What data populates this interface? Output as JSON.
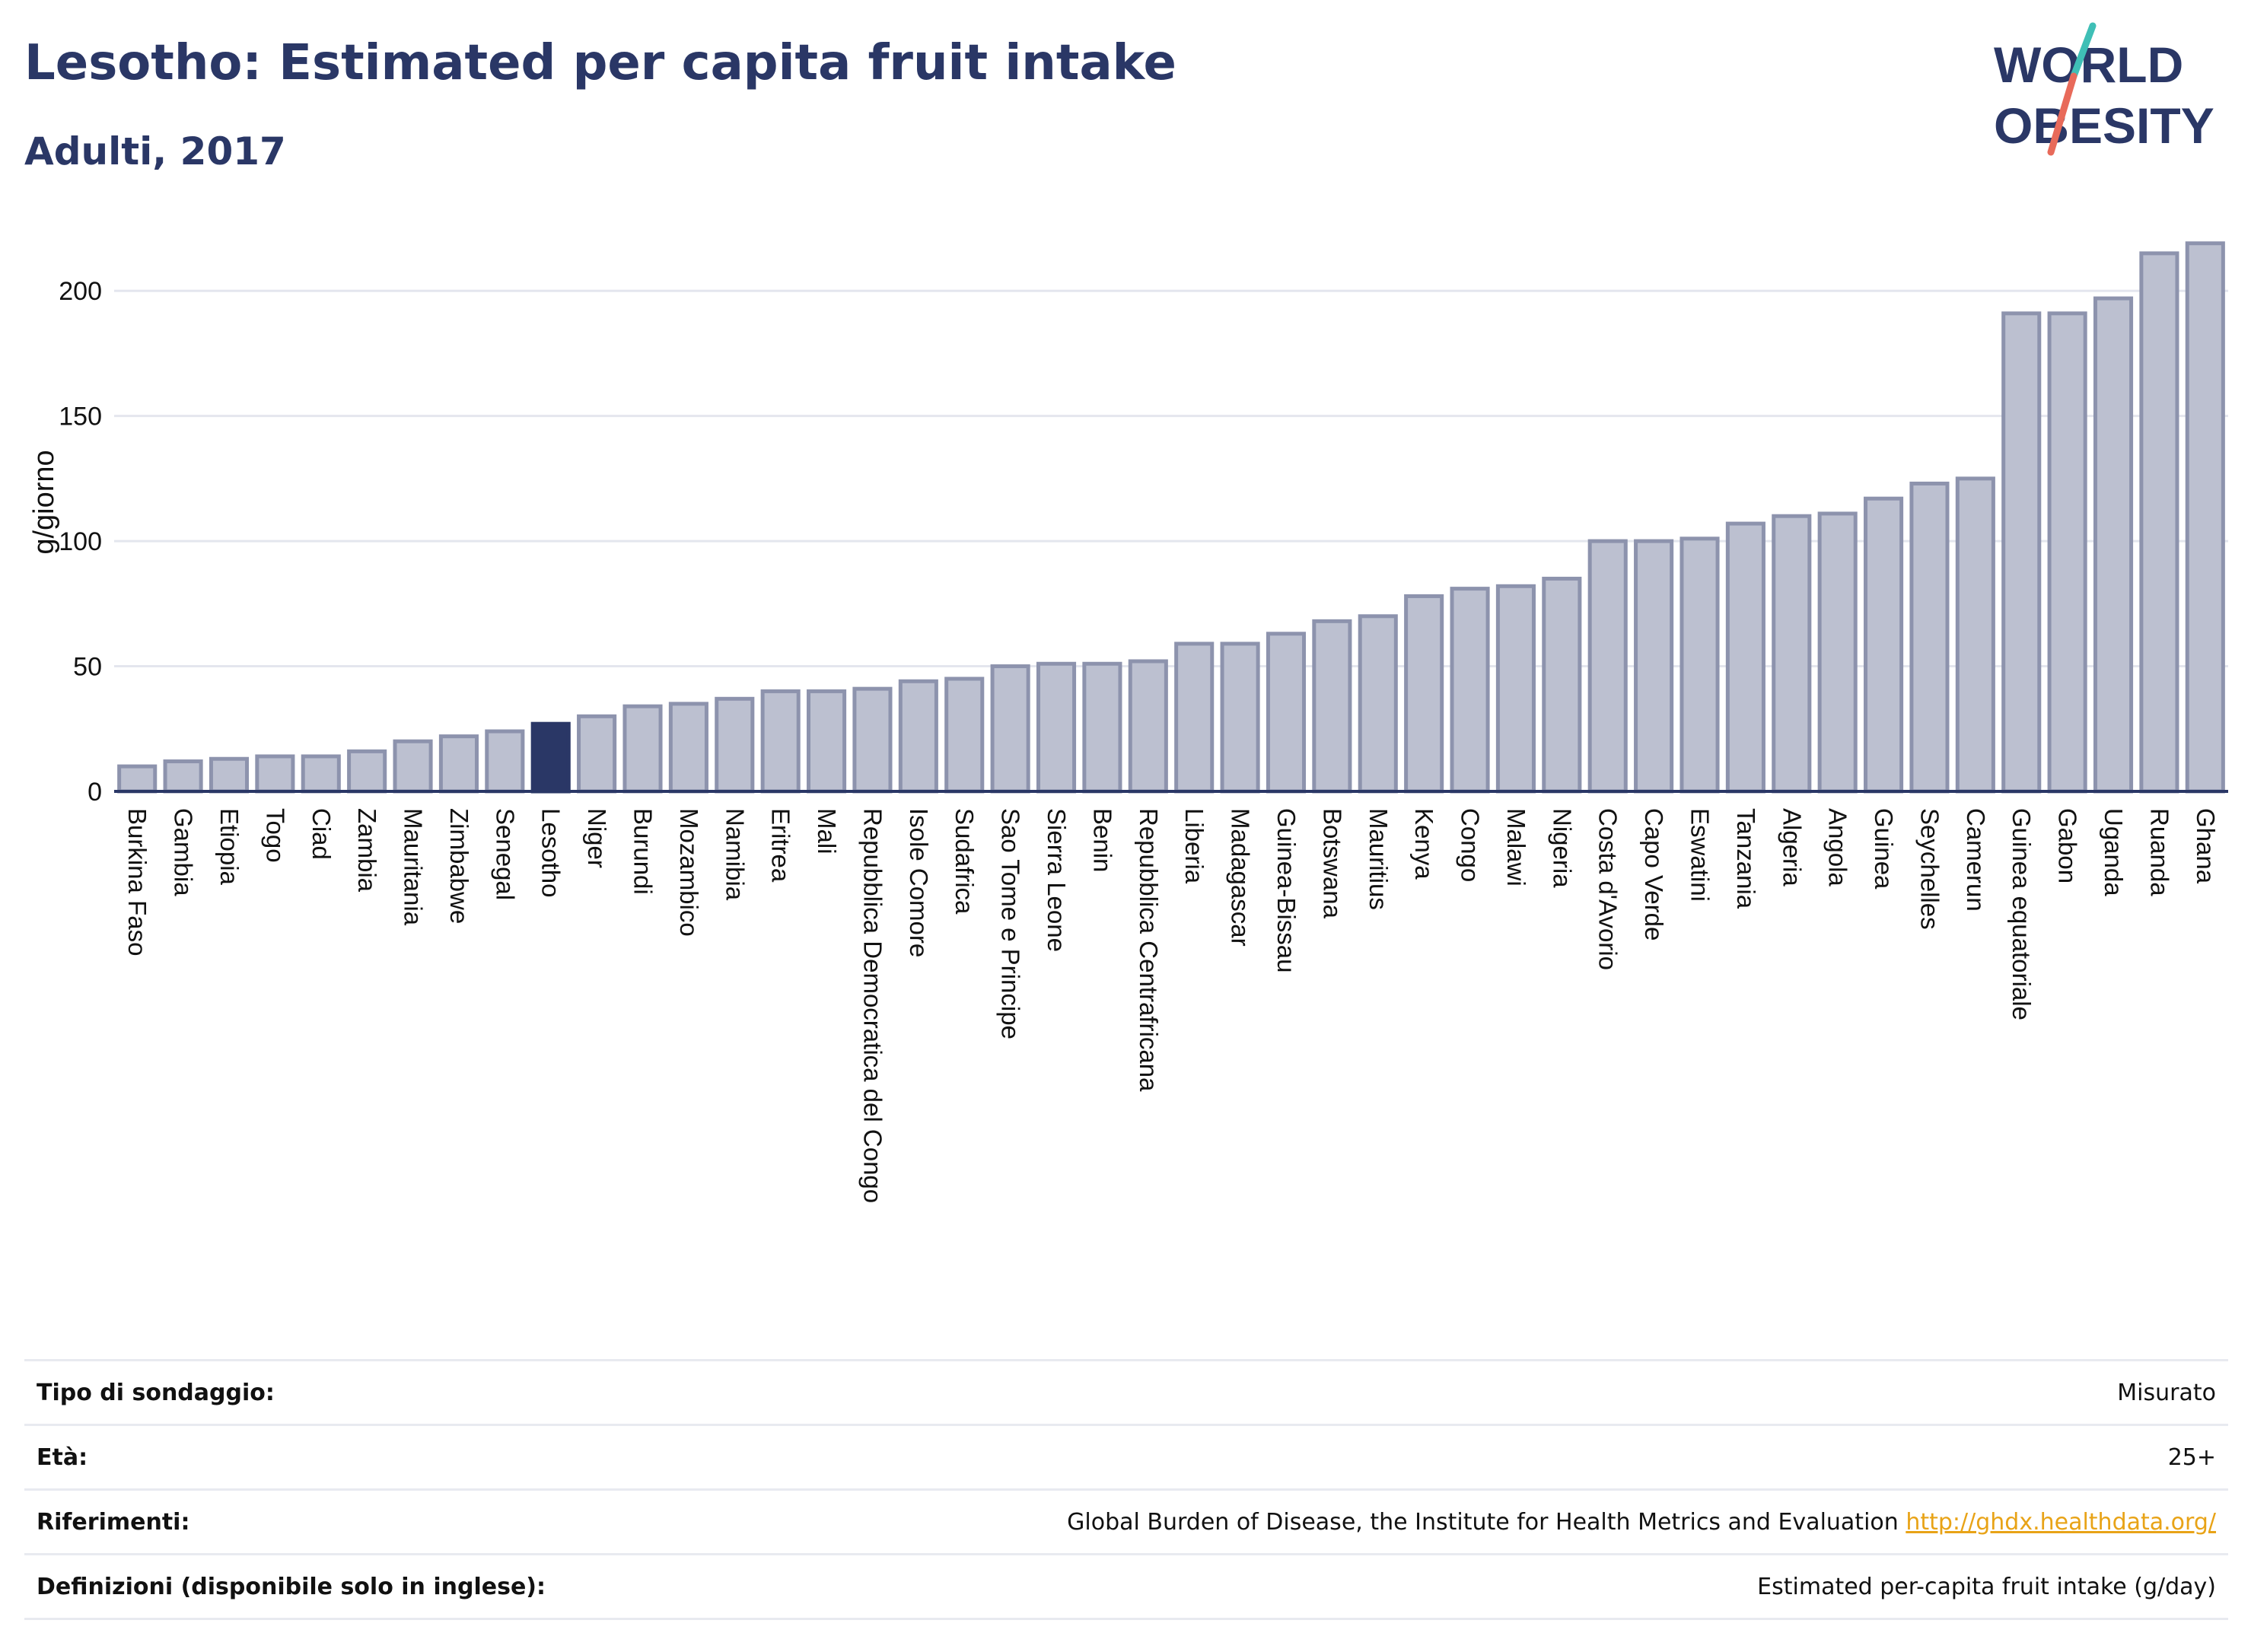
{
  "header": {
    "title": "Lesotho: Estimated per capita fruit intake",
    "subtitle": "Adulti, 2017"
  },
  "logo": {
    "line1": "WORLD",
    "line2": "OBESITY"
  },
  "colors": {
    "bar_fill": "#bcc0d0",
    "bar_stroke": "#8d93ad",
    "highlight": "#2a3766",
    "grid": "#e4e6ee",
    "text": "#2a3766",
    "link": "#e8a317",
    "logo_teal": "#3fbfb6",
    "logo_red": "#e86a5a"
  },
  "chart_data": {
    "type": "bar",
    "ylabel": "g/giorno",
    "xlabel": "",
    "ylim": [
      0,
      225
    ],
    "yticks": [
      0,
      50,
      100,
      150,
      200
    ],
    "grid": true,
    "highlight": "Lesotho",
    "categories": [
      "Burkina Faso",
      "Gambia",
      "Etiopia",
      "Togo",
      "Ciad",
      "Zambia",
      "Mauritania",
      "Zimbabwe",
      "Senegal",
      "Lesotho",
      "Niger",
      "Burundi",
      "Mozambico",
      "Namibia",
      "Eritrea",
      "Mali",
      "Repubblica Democratica del Congo",
      "Isole Comore",
      "Sudafrica",
      "Sao Tome e Principe",
      "Sierra Leone",
      "Benin",
      "Repubblica Centrafricana",
      "Liberia",
      "Madagascar",
      "Guinea-Bissau",
      "Botswana",
      "Mauritius",
      "Kenya",
      "Congo",
      "Malawi",
      "Nigeria",
      "Costa d'Avorio",
      "Capo Verde",
      "Eswatini",
      "Tanzania",
      "Algeria",
      "Angola",
      "Guinea",
      "Seychelles",
      "Camerun",
      "Guinea equatoriale",
      "Gabon",
      "Uganda",
      "Ruanda",
      "Ghana"
    ],
    "values": [
      10,
      12,
      13,
      14,
      14,
      16,
      20,
      22,
      24,
      27,
      30,
      34,
      35,
      37,
      40,
      40,
      41,
      44,
      45,
      50,
      51,
      51,
      52,
      59,
      59,
      63,
      68,
      70,
      78,
      81,
      82,
      85,
      100,
      100,
      101,
      107,
      110,
      111,
      117,
      123,
      125,
      191,
      191,
      197,
      215,
      219
    ]
  },
  "info": {
    "rows": [
      {
        "label": "Tipo di sondaggio:",
        "value": "Misurato"
      },
      {
        "label": "Età:",
        "value": "25+"
      },
      {
        "label": "Riferimenti:",
        "value": "Global Burden of Disease, the Institute for Health Metrics and Evaluation ",
        "link": "http://ghdx.healthdata.org/"
      },
      {
        "label": "Definizioni (disponibile solo in inglese):",
        "value": "Estimated per-capita fruit intake (g/day)"
      }
    ]
  }
}
